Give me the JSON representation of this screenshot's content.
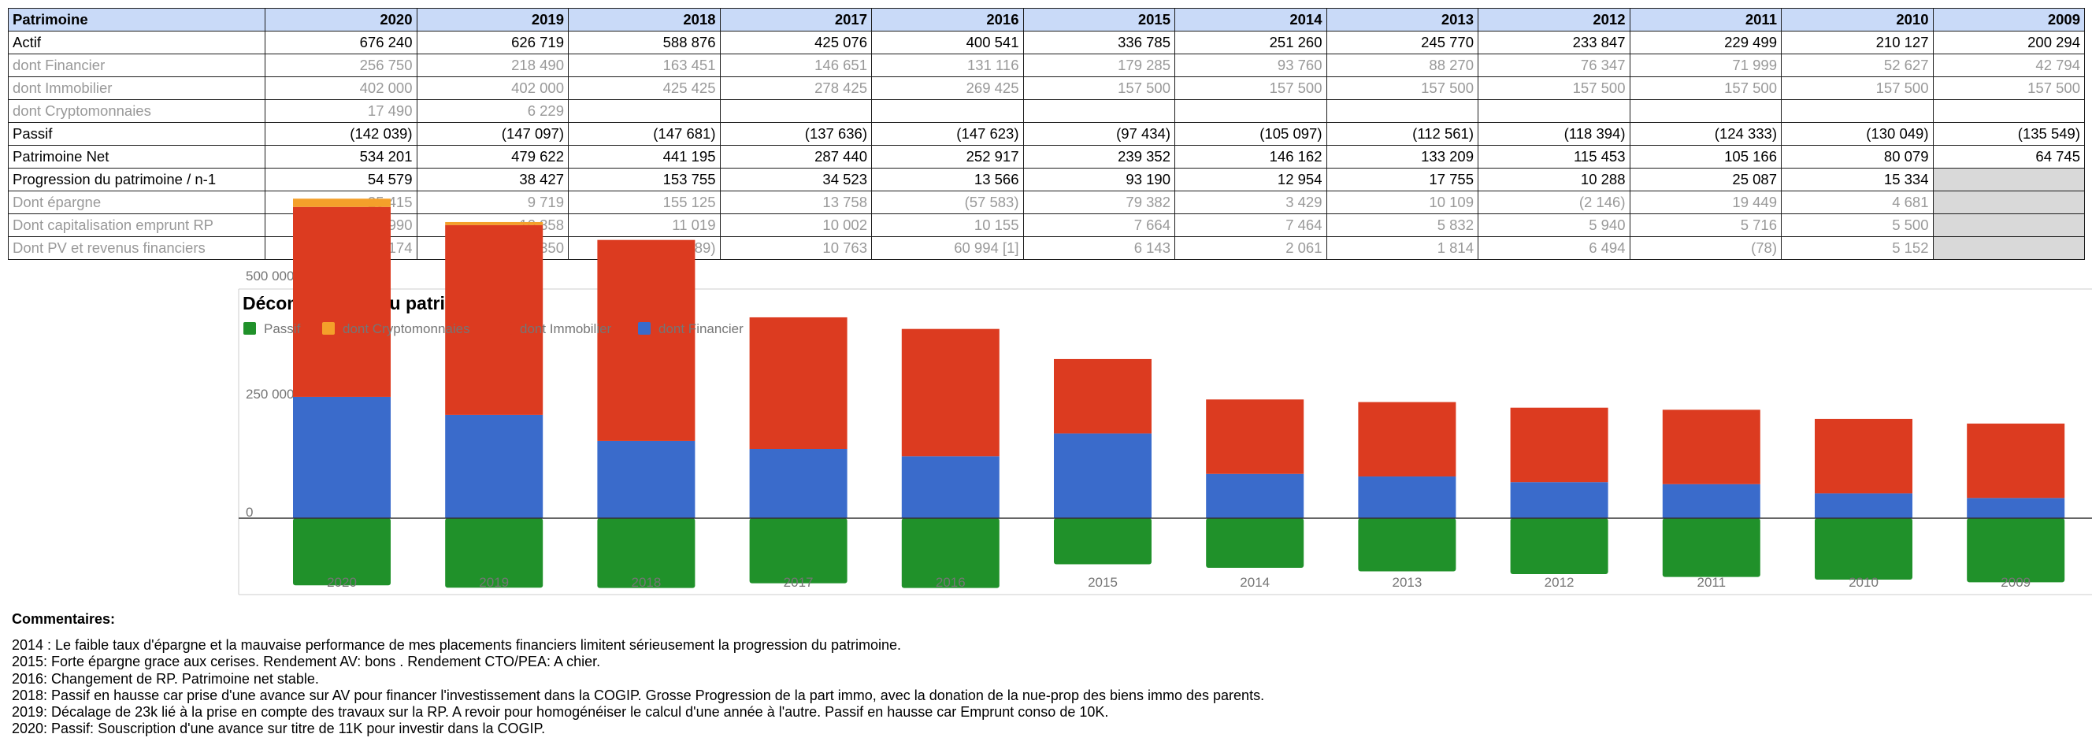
{
  "table": {
    "header": [
      "Patrimoine",
      "2020",
      "2019",
      "2018",
      "2017",
      "2016",
      "2015",
      "2014",
      "2013",
      "2012",
      "2011",
      "2010",
      "2009"
    ],
    "rows": [
      {
        "style": "main",
        "cells": [
          "Actif",
          "676 240",
          "626 719",
          "588 876",
          "425 076",
          "400 541",
          "336 785",
          "251 260",
          "245 770",
          "233 847",
          "229 499",
          "210 127",
          "200 294"
        ]
      },
      {
        "style": "sub",
        "cells": [
          "dont Financier",
          "256 750",
          "218 490",
          "163 451",
          "146 651",
          "131 116",
          "179 285",
          "93 760",
          "88 270",
          "76 347",
          "71 999",
          "52 627",
          "42 794"
        ]
      },
      {
        "style": "sub",
        "cells": [
          "dont Immobilier",
          "402 000",
          "402 000",
          "425 425",
          "278 425",
          "269 425",
          "157 500",
          "157 500",
          "157 500",
          "157 500",
          "157 500",
          "157 500",
          "157 500"
        ]
      },
      {
        "style": "sub",
        "cells": [
          "dont Cryptomonnaies",
          "17 490",
          "6 229",
          "",
          "",
          "",
          "",
          "",
          "",
          "",
          "",
          "",
          ""
        ]
      },
      {
        "style": "main",
        "cells": [
          "Passif",
          "(142 039)",
          "(147 097)",
          "(147 681)",
          "(137 636)",
          "(147 623)",
          "(97 434)",
          "(105 097)",
          "(112 561)",
          "(118 394)",
          "(124 333)",
          "(130 049)",
          "(135 549)"
        ]
      },
      {
        "style": "main",
        "cells": [
          "Patrimoine Net",
          "534 201",
          "479 622",
          "441 195",
          "287 440",
          "252 917",
          "239 352",
          "146 162",
          "133 209",
          "115 453",
          "105 166",
          "80 079",
          "64 745"
        ]
      },
      {
        "style": "main",
        "shadeLast": true,
        "cells": [
          "Progression du patrimoine / n-1",
          "54 579",
          "38 427",
          "153 755",
          "34 523",
          "13 566",
          "93 190",
          "12 954",
          "17 755",
          "10 288",
          "25 087",
          "15 334",
          ""
        ]
      },
      {
        "style": "sub",
        "shadeLast": true,
        "cells": [
          "Dont épargne",
          "25 415",
          "9 719",
          "155 125",
          "13 758",
          "(57 583)",
          "79 382",
          "3 429",
          "10 109",
          "(2 146)",
          "19 449",
          "4 681",
          ""
        ]
      },
      {
        "style": "sub",
        "shadeLast": true,
        "cells": [
          "Dont capitalisation emprunt RP",
          "10 990",
          "10 358",
          "11 019",
          "10 002",
          "10 155",
          "7 664",
          "7 464",
          "5 832",
          "5 940",
          "5 716",
          "5 500",
          ""
        ]
      },
      {
        "style": "sub",
        "shadeLast": true,
        "cells": [
          "Dont PV et revenus financiers",
          "18 174",
          "18 350",
          "(12 389)",
          "10 763",
          "60 994 [1]",
          "6 143",
          "2 061",
          "1 814",
          "6 494",
          "(78)",
          "5 152",
          ""
        ]
      }
    ]
  },
  "chart_data": {
    "type": "bar",
    "stacked": true,
    "title": "Décomposition du patrimoine net",
    "legend_position": "top-left",
    "categories": [
      "2020",
      "2019",
      "2018",
      "2017",
      "2016",
      "2015",
      "2014",
      "2013",
      "2012",
      "2011",
      "2010",
      "2009"
    ],
    "series": [
      {
        "name": "Passif",
        "color": "#20912a",
        "values": [
          -142039,
          -147097,
          -147681,
          -137636,
          -147623,
          -97434,
          -105097,
          -112561,
          -118394,
          -124333,
          -130049,
          -135549
        ]
      },
      {
        "name": "dont Cryptomonnaies",
        "color": "#f4a02a",
        "values": [
          17490,
          6229,
          0,
          0,
          0,
          0,
          0,
          0,
          0,
          0,
          0,
          0
        ]
      },
      {
        "name": "dont Immobilier",
        "color": "#dc3b20",
        "values": [
          402000,
          402000,
          425425,
          278425,
          269425,
          157500,
          157500,
          157500,
          157500,
          157500,
          157500,
          157500
        ]
      },
      {
        "name": "dont Financier",
        "color": "#3a6bcb",
        "values": [
          256750,
          218490,
          163451,
          146651,
          131116,
          179285,
          93760,
          88270,
          76347,
          71999,
          52627,
          42794
        ]
      }
    ],
    "y_ticks": [
      "500 000",
      "250 000",
      "0"
    ],
    "y_tick_values": [
      500000,
      250000,
      0
    ],
    "ylim": [
      -160000,
      700000
    ],
    "gridlines": false
  },
  "comments": {
    "title": "Commentaires:",
    "lines": [
      "2014 : Le faible taux d'épargne et la mauvaise performance de mes placements financiers limitent sérieusement la progression du patrimoine.",
      "2015: Forte épargne grace aux cerises. Rendement AV: bons . Rendement CTO/PEA: A chier.",
      "2016: Changement de RP. Patrimoine net stable.",
      "2018: Passif en hausse car prise d'une avance sur AV pour financer l'investissement dans la COGIP. Grosse Progression de la part immo, avec la donation de la nue-prop des biens immo des parents.",
      "2019: Décalage de 23k lié à la prise en compte des travaux sur la RP. A revoir pour homogénéiser le calcul d'une année à l'autre. Passif en hausse car Emprunt conso de 10K.",
      "2020: Passif: Souscription d'une avance sur titre de 11K pour investir dans la COGIP."
    ]
  }
}
